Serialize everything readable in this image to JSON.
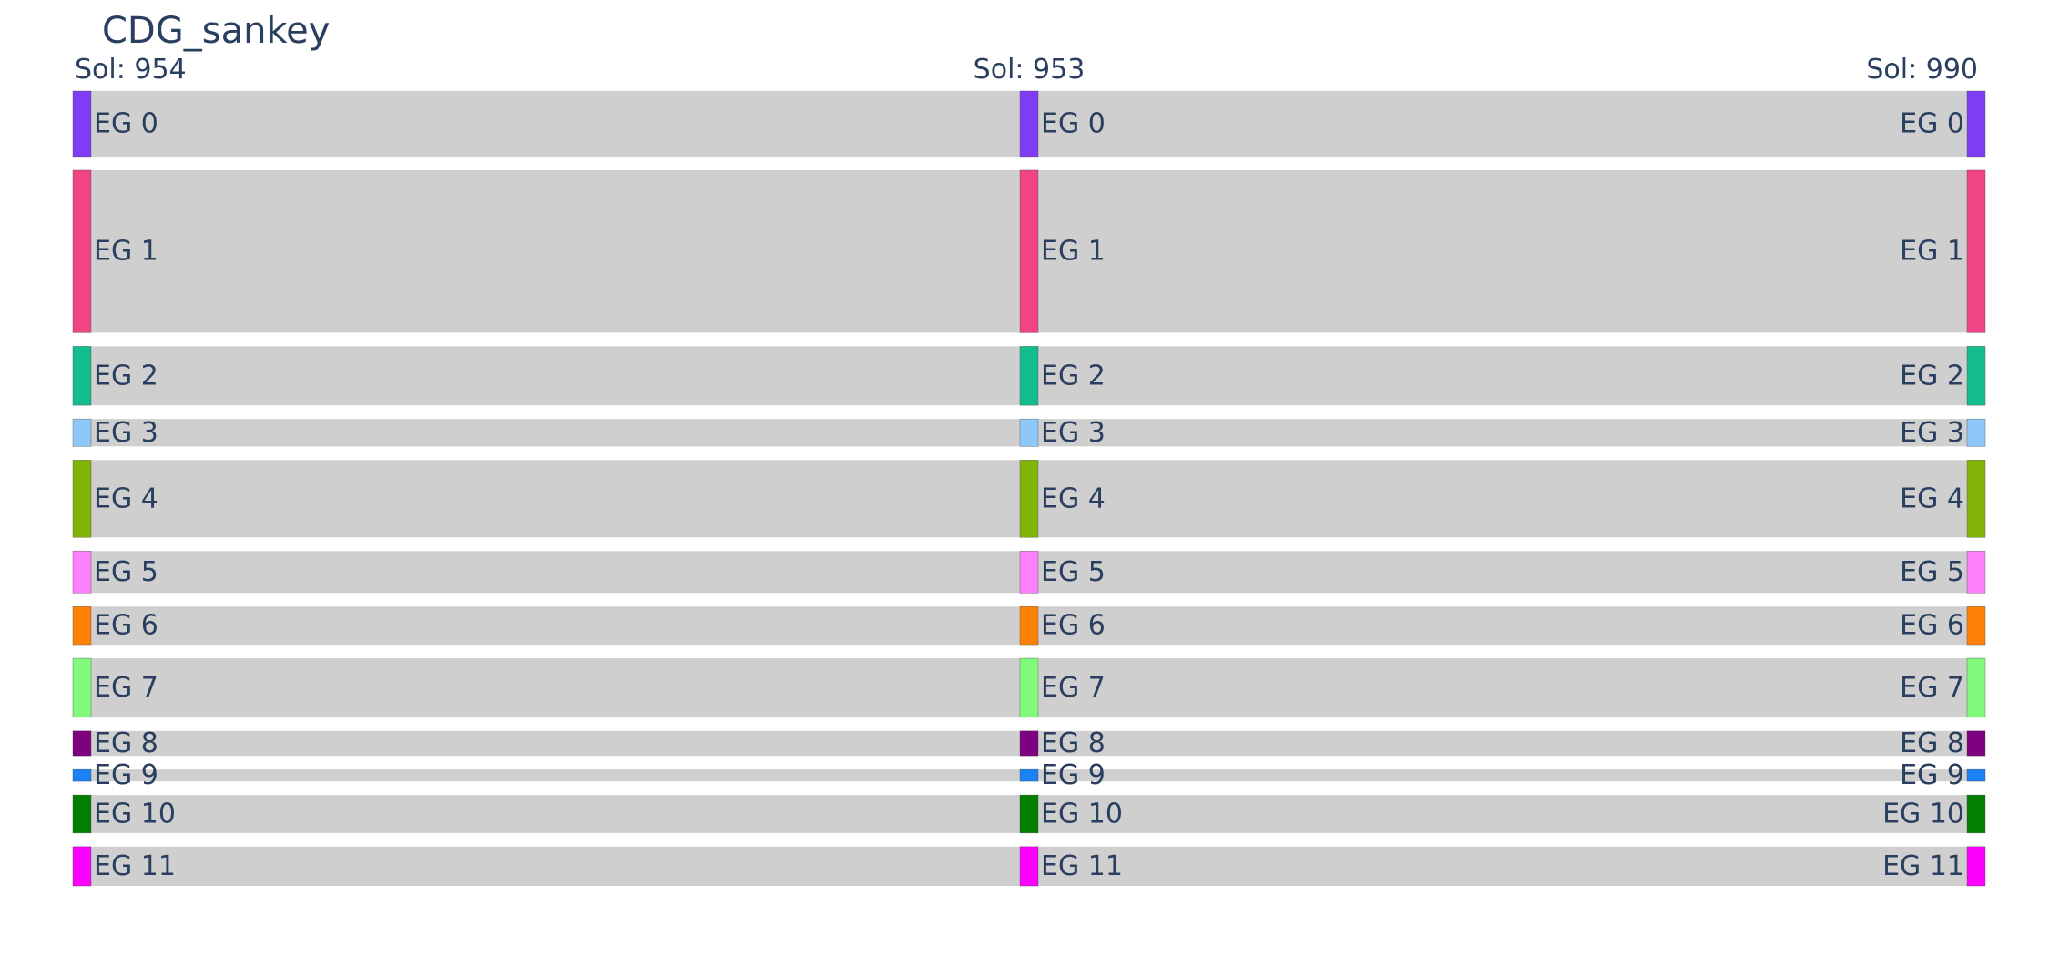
{
  "chart_data": {
    "type": "sankey",
    "title": "CDG_sankey",
    "columns": [
      "Sol: 954",
      "Sol: 953",
      "Sol: 990"
    ],
    "link_color": "#cccccc",
    "nodes": [
      {
        "label": "EG 0",
        "value": 50,
        "color": "#7f3cf5"
      },
      {
        "label": "EG 1",
        "value": 124,
        "color": "#ef4584"
      },
      {
        "label": "EG 2",
        "value": 45,
        "color": "#13bb8d"
      },
      {
        "label": "EG 3",
        "value": 21,
        "color": "#8ec8f8"
      },
      {
        "label": "EG 4",
        "value": 59,
        "color": "#82b408"
      },
      {
        "label": "EG 5",
        "value": 32,
        "color": "#fd80fc"
      },
      {
        "label": "EG 6",
        "value": 29,
        "color": "#fd8105"
      },
      {
        "label": "EG 7",
        "value": 45,
        "color": "#82fb7d"
      },
      {
        "label": "EG 8",
        "value": 19,
        "color": "#7e0180"
      },
      {
        "label": "EG 9",
        "value": 9,
        "color": "#1a82f5"
      },
      {
        "label": "EG 10",
        "value": 29,
        "color": "#027f01"
      },
      {
        "label": "EG 11",
        "value": 30,
        "color": "#fc02fd"
      }
    ]
  }
}
